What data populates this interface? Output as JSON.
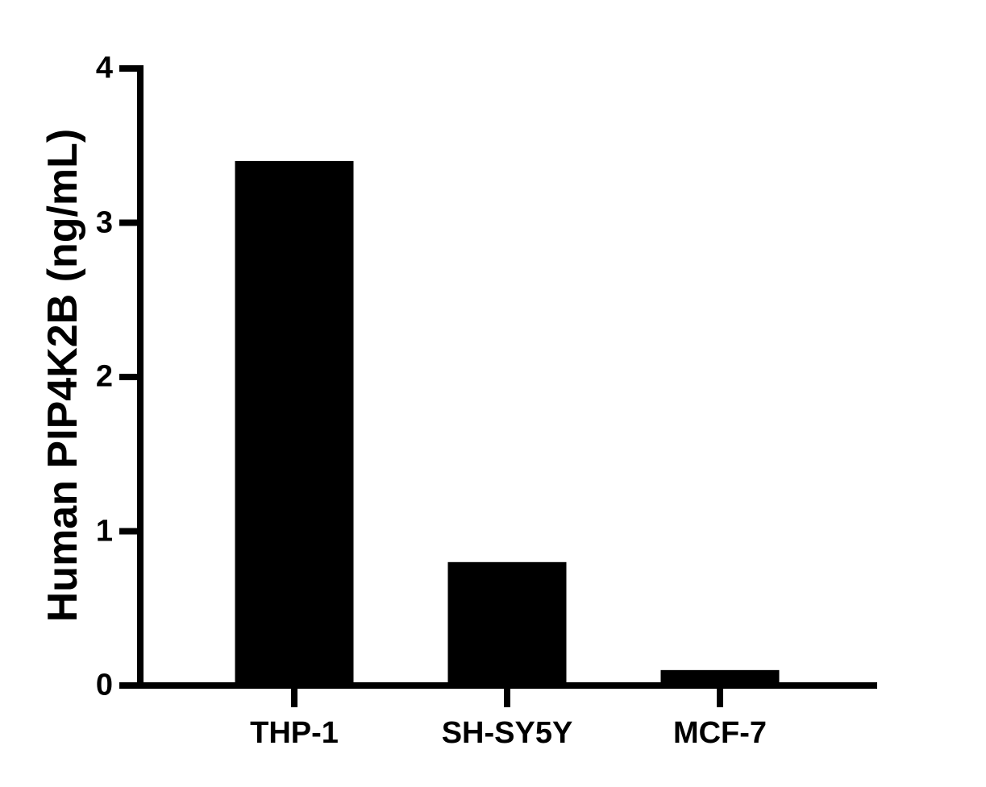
{
  "chart_data": {
    "type": "bar",
    "title": "",
    "xlabel": "",
    "ylabel": "Human PIP4K2B (ng/mL)",
    "categories": [
      "THP-1",
      "SH-SY5Y",
      "MCF-7"
    ],
    "values": [
      3.4,
      0.8,
      0.1
    ],
    "ylim": [
      0,
      4
    ],
    "yticks": [
      0,
      1,
      2,
      3,
      4
    ],
    "grid": false,
    "legend": null,
    "bar_color": "#000000"
  }
}
